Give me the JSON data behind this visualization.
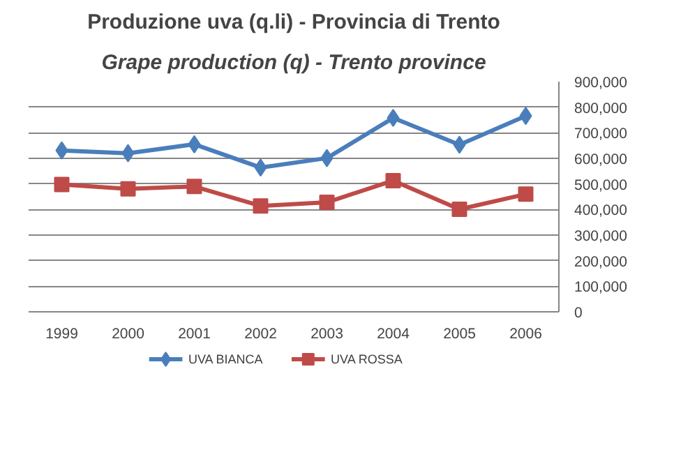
{
  "chart_data": {
    "type": "line",
    "title": "Produzione uva (q.li) - Provincia di Trento",
    "subtitle": "Grape production (q) - Trento province",
    "categories": [
      "1999",
      "2000",
      "2001",
      "2002",
      "2003",
      "2004",
      "2005",
      "2006"
    ],
    "series": [
      {
        "name": "UVA BIANCA",
        "color": "#4a7ebb",
        "marker": "diamond",
        "values": [
          631000,
          620000,
          655000,
          564000,
          601000,
          758000,
          653000,
          766000
        ]
      },
      {
        "name": "UVA ROSSA",
        "color": "#be4b48",
        "marker": "square",
        "values": [
          498000,
          481000,
          490000,
          414000,
          428000,
          513000,
          401000,
          460000
        ]
      }
    ],
    "ylim": [
      0,
      900000
    ],
    "yticks": [
      0,
      {
        "value": 100000,
        "label": "100,000"
      },
      {
        "value": 200000,
        "label": "200,000"
      },
      {
        "value": 300000,
        "label": "300,000"
      },
      {
        "value": 400000,
        "label": "400,000"
      },
      {
        "value": 500000,
        "label": "500,000"
      },
      {
        "value": 600000,
        "label": "600,000"
      },
      {
        "value": 700000,
        "label": "700,000"
      },
      {
        "value": 800000,
        "label": "800,000"
      },
      {
        "value": 900000,
        "label": "900,000"
      }
    ],
    "grid": "y",
    "legend": "bottom",
    "line_style": "solid"
  }
}
